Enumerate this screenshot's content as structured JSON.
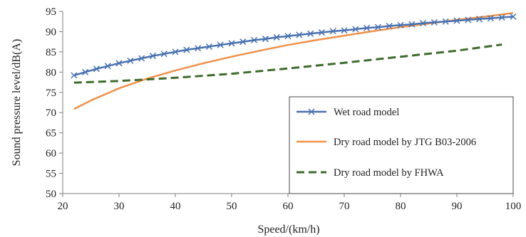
{
  "chart_data": {
    "type": "line",
    "title": "",
    "xlabel": "Speed/(km/h)",
    "ylabel": "Sound pressure level/dB(A)",
    "xlim": [
      20,
      100
    ],
    "ylim": [
      50,
      95
    ],
    "xticks": [
      "20",
      "30",
      "40",
      "50",
      "60",
      "70",
      "80",
      "90",
      "100"
    ],
    "yticks": [
      "50",
      "55",
      "60",
      "65",
      "70",
      "75",
      "80",
      "85",
      "90",
      "95"
    ],
    "grid": false,
    "legend_position": "bottom-right",
    "series": [
      {
        "name": "Wet road model",
        "color": "#4a72b0",
        "style": "solid-x-marker",
        "x": [
          22,
          24,
          26,
          28,
          30,
          32,
          34,
          36,
          38,
          40,
          42,
          44,
          46,
          48,
          50,
          52,
          54,
          56,
          58,
          60,
          62,
          64,
          66,
          68,
          70,
          72,
          74,
          76,
          78,
          80,
          82,
          84,
          86,
          88,
          90,
          92,
          94,
          96,
          98,
          100
        ],
        "y": [
          79.2,
          80.0,
          80.8,
          81.5,
          82.2,
          82.8,
          83.4,
          84.0,
          84.5,
          85.0,
          85.5,
          85.9,
          86.3,
          86.7,
          87.1,
          87.5,
          87.9,
          88.2,
          88.6,
          88.9,
          89.2,
          89.5,
          89.8,
          90.1,
          90.3,
          90.6,
          90.9,
          91.1,
          91.4,
          91.6,
          91.8,
          92.1,
          92.3,
          92.5,
          92.7,
          92.9,
          93.1,
          93.3,
          93.5,
          93.7
        ]
      },
      {
        "name": "Dry road model by JTG B03-2006",
        "color": "#f0914a",
        "style": "solid",
        "x": [
          22,
          25,
          30,
          35,
          40,
          45,
          50,
          55,
          60,
          65,
          70,
          75,
          80,
          85,
          90,
          95,
          100
        ],
        "y": [
          70.9,
          73.0,
          76.0,
          78.4,
          80.4,
          82.2,
          83.8,
          85.3,
          86.7,
          87.9,
          89.0,
          90.1,
          91.1,
          92.0,
          92.9,
          93.7,
          94.6
        ]
      },
      {
        "name": "Dry road model by FHWA",
        "color": "#3e6b2c",
        "style": "dashed",
        "x": [
          22,
          30,
          40,
          50,
          60,
          70,
          80,
          90,
          98
        ],
        "y": [
          77.4,
          77.8,
          78.6,
          79.6,
          80.9,
          82.3,
          83.8,
          85.3,
          86.8
        ]
      }
    ]
  }
}
